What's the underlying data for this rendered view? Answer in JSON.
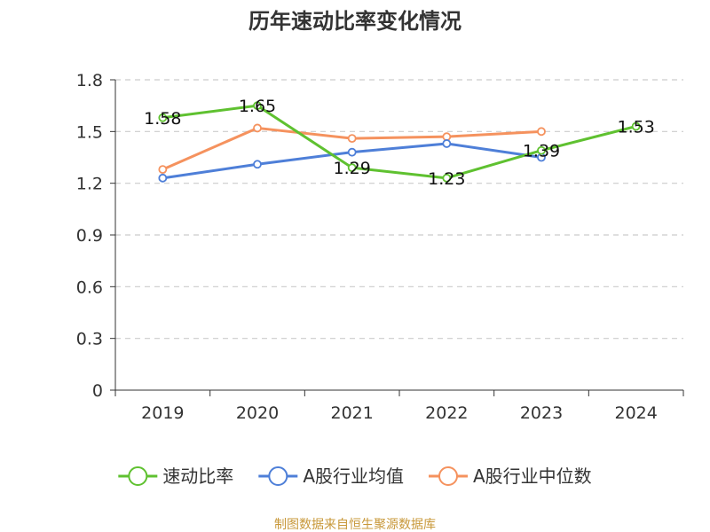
{
  "chart_data": {
    "type": "line",
    "title": "历年速动比率变化情况",
    "categories": [
      "2019",
      "2020",
      "2021",
      "2022",
      "2023",
      "2024"
    ],
    "y_ticks": [
      "0",
      "0.3",
      "0.6",
      "0.9",
      "1.2",
      "1.5",
      "1.8"
    ],
    "ylim": [
      0,
      1.8
    ],
    "grid": true,
    "legend_position": "bottom",
    "series": [
      {
        "name": "速动比率",
        "color": "#5fc130",
        "values": [
          1.58,
          1.65,
          1.29,
          1.23,
          1.39,
          1.53
        ],
        "data_labels": [
          "1.58",
          "1.65",
          "1.29",
          "1.23",
          "1.39",
          "1.53"
        ]
      },
      {
        "name": "A股行业均值",
        "color": "#4e7fd8",
        "values": [
          1.23,
          1.31,
          1.38,
          1.43,
          1.35,
          null
        ]
      },
      {
        "name": "A股行业中位数",
        "color": "#f5925e",
        "values": [
          1.28,
          1.52,
          1.46,
          1.47,
          1.5,
          null
        ]
      }
    ]
  },
  "source": {
    "text": "制图数据来自恒生聚源数据库",
    "color": "#c8983a"
  }
}
